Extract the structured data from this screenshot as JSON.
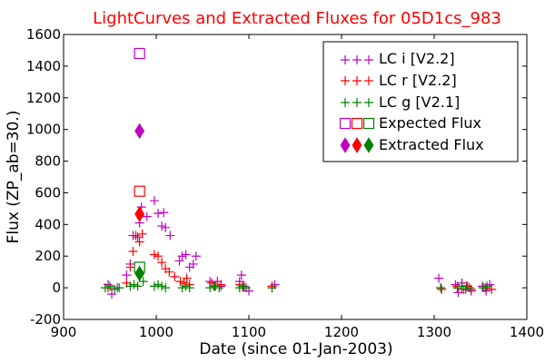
{
  "chart_data": {
    "type": "scatter",
    "title": "LightCurves and Extracted Fluxes for 05D1cs_983",
    "xlabel": "Date (since 01-Jan-2003)",
    "ylabel": "Flux (ZP_ab=30.)",
    "xlim": [
      900,
      1400
    ],
    "ylim": [
      -200,
      1600
    ],
    "xticks": [
      900,
      1000,
      1100,
      1200,
      1300,
      1400
    ],
    "yticks": [
      -200,
      0,
      200,
      400,
      600,
      800,
      1000,
      1200,
      1400,
      1600
    ],
    "grid": false,
    "legend_position": "top-right",
    "series": [
      {
        "name": "LC i [V2.2]",
        "marker": "plus",
        "color": "#c000c0",
        "points": [
          [
            948,
            20
          ],
          [
            952,
            -40
          ],
          [
            958,
            0
          ],
          [
            968,
            80
          ],
          [
            972,
            150
          ],
          [
            975,
            330
          ],
          [
            980,
            320
          ],
          [
            982,
            410
          ],
          [
            984,
            510
          ],
          [
            990,
            450
          ],
          [
            998,
            550
          ],
          [
            1002,
            470
          ],
          [
            1006,
            390
          ],
          [
            1008,
            475
          ],
          [
            1010,
            380
          ],
          [
            1015,
            330
          ],
          [
            1025,
            170
          ],
          [
            1028,
            200
          ],
          [
            1032,
            210
          ],
          [
            1036,
            130
          ],
          [
            1040,
            150
          ],
          [
            1043,
            200
          ],
          [
            1058,
            40
          ],
          [
            1062,
            10
          ],
          [
            1066,
            40
          ],
          [
            1070,
            10
          ],
          [
            1090,
            40
          ],
          [
            1092,
            80
          ],
          [
            1095,
            10
          ],
          [
            1100,
            -20
          ],
          [
            1125,
            0
          ],
          [
            1128,
            20
          ],
          [
            1305,
            60
          ],
          [
            1307,
            0
          ],
          [
            1323,
            20
          ],
          [
            1326,
            -30
          ],
          [
            1330,
            30
          ],
          [
            1332,
            -10
          ],
          [
            1336,
            10
          ],
          [
            1340,
            -20
          ],
          [
            1352,
            10
          ],
          [
            1356,
            -20
          ],
          [
            1360,
            20
          ]
        ]
      },
      {
        "name": "LC r [V2.2]",
        "marker": "plus",
        "color": "#ff0000",
        "points": [
          [
            948,
            0
          ],
          [
            968,
            30
          ],
          [
            972,
            130
          ],
          [
            975,
            230
          ],
          [
            978,
            330
          ],
          [
            982,
            290
          ],
          [
            985,
            340
          ],
          [
            998,
            210
          ],
          [
            1002,
            200
          ],
          [
            1006,
            160
          ],
          [
            1010,
            120
          ],
          [
            1014,
            100
          ],
          [
            1020,
            70
          ],
          [
            1026,
            40
          ],
          [
            1030,
            30
          ],
          [
            1033,
            60
          ],
          [
            1036,
            20
          ],
          [
            1060,
            30
          ],
          [
            1064,
            10
          ],
          [
            1070,
            20
          ],
          [
            1090,
            20
          ],
          [
            1094,
            0
          ],
          [
            1125,
            10
          ],
          [
            1308,
            -10
          ],
          [
            1325,
            10
          ],
          [
            1330,
            -10
          ],
          [
            1335,
            10
          ],
          [
            1340,
            -10
          ],
          [
            1355,
            0
          ],
          [
            1362,
            -10
          ]
        ]
      },
      {
        "name": "LC g [V2.1]",
        "marker": "plus",
        "color": "#008000",
        "points": [
          [
            945,
            0
          ],
          [
            950,
            10
          ],
          [
            955,
            -10
          ],
          [
            960,
            0
          ],
          [
            972,
            10
          ],
          [
            976,
            20
          ],
          [
            980,
            10
          ],
          [
            986,
            40
          ],
          [
            998,
            10
          ],
          [
            1002,
            20
          ],
          [
            1006,
            10
          ],
          [
            1010,
            0
          ],
          [
            1028,
            0
          ],
          [
            1032,
            10
          ],
          [
            1036,
            0
          ],
          [
            1058,
            0
          ],
          [
            1063,
            10
          ],
          [
            1068,
            0
          ],
          [
            1090,
            0
          ],
          [
            1093,
            10
          ],
          [
            1097,
            0
          ],
          [
            1125,
            0
          ],
          [
            1307,
            0
          ],
          [
            1325,
            0
          ],
          [
            1330,
            10
          ],
          [
            1334,
            -10
          ],
          [
            1338,
            0
          ],
          [
            1353,
            0
          ],
          [
            1357,
            10
          ]
        ]
      },
      {
        "name": "Expected Flux",
        "marker": "square",
        "colors": [
          "#c000c0",
          "#ff0000",
          "#008000"
        ],
        "points": [
          [
            982,
            1480
          ],
          [
            982,
            610
          ],
          [
            982,
            130
          ]
        ]
      },
      {
        "name": "Extracted Flux",
        "marker": "diamond",
        "colors": [
          "#c000c0",
          "#ff0000",
          "#008000"
        ],
        "points": [
          [
            982,
            990
          ],
          [
            982,
            465
          ],
          [
            982,
            90
          ]
        ]
      }
    ]
  }
}
